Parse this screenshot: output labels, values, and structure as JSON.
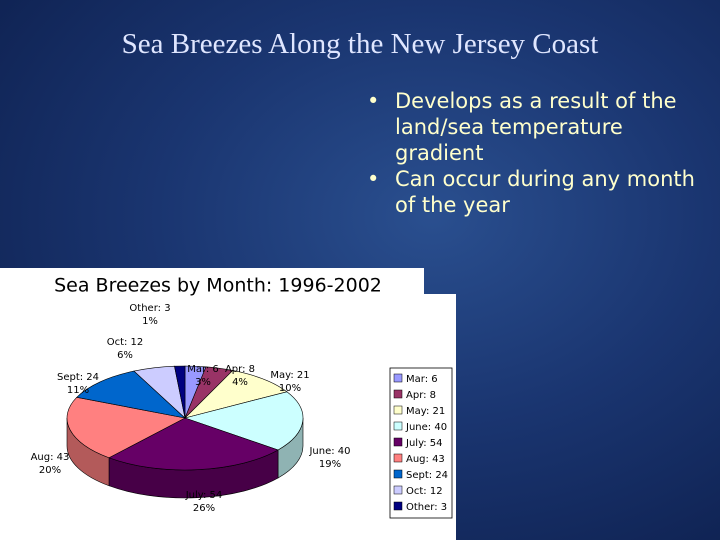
{
  "title": "Sea Breezes Along the New Jersey Coast",
  "bullets": [
    "Develops as a result of the land/sea temperature gradient",
    "Can occur during any month of the year"
  ],
  "chart_data": {
    "type": "pie",
    "title": "Sea Breezes by Month: 1996-2002",
    "labels": [
      "Mar: 6",
      "Apr: 8",
      "May: 21",
      "June: 40",
      "July: 54",
      "Aug: 43",
      "Sept: 24",
      "Oct: 12",
      "Other: 3"
    ],
    "values": [
      6,
      8,
      21,
      40,
      54,
      43,
      24,
      12,
      3
    ],
    "percent_labels": [
      "3%",
      "4%",
      "10%",
      "19%",
      "26%",
      "20%",
      "11%",
      "6%",
      "1%"
    ],
    "colors": [
      "#9999ff",
      "#993366",
      "#ffffcc",
      "#ccffff",
      "#660066",
      "#ff8080",
      "#0066cc",
      "#ccccff",
      "#000080"
    ],
    "legend": "right"
  }
}
